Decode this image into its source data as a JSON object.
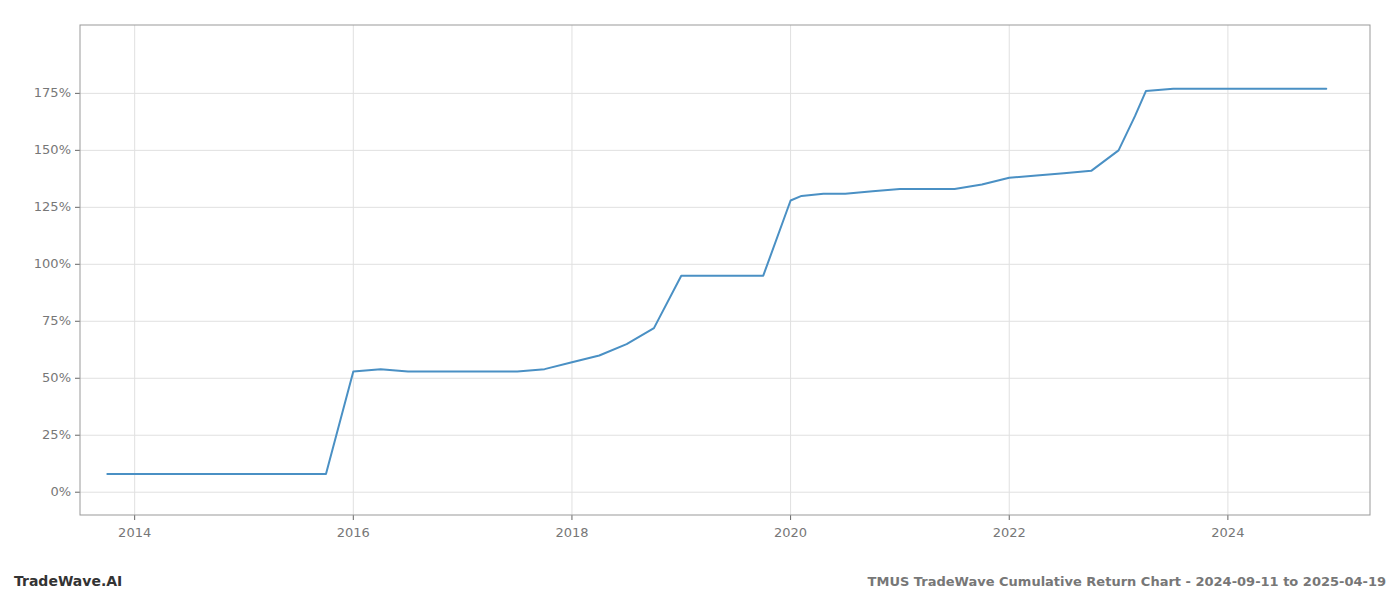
{
  "chart_data": {
    "type": "line",
    "title": "TMUS TradeWave Cumulative Return Chart - 2024-09-11 to 2025-04-19",
    "annotations": [
      "TradeWave.AI"
    ],
    "x": [
      2013.75,
      2014.0,
      2014.5,
      2015.0,
      2015.08,
      2015.75,
      2016.0,
      2016.25,
      2016.5,
      2016.75,
      2017.0,
      2017.25,
      2017.5,
      2017.75,
      2018.0,
      2018.25,
      2018.5,
      2018.75,
      2019.0,
      2019.25,
      2019.5,
      2019.75,
      2020.0,
      2020.1,
      2020.3,
      2020.5,
      2020.75,
      2021.0,
      2021.25,
      2021.5,
      2021.75,
      2022.0,
      2022.25,
      2022.5,
      2022.75,
      2023.0,
      2023.15,
      2023.25,
      2023.5,
      2023.75,
      2024.0,
      2024.25,
      2024.5,
      2024.75,
      2024.9
    ],
    "values": [
      8,
      8,
      8,
      8,
      8,
      8,
      53,
      54,
      53,
      53,
      53,
      53,
      53,
      54,
      57,
      60,
      65,
      72,
      95,
      95,
      95,
      95,
      128,
      130,
      131,
      131,
      132,
      133,
      133,
      133,
      135,
      138,
      139,
      140,
      141,
      150,
      165,
      176,
      177,
      177,
      177,
      177,
      177,
      177,
      177
    ],
    "color": "#4a90c4",
    "xlim": [
      2013.5,
      2025.3
    ],
    "ylim": [
      -10,
      205
    ],
    "xticks": [
      2014,
      2016,
      2018,
      2020,
      2022,
      2024
    ],
    "yticks": [
      {
        "value": 0,
        "label": "0%"
      },
      {
        "value": 25,
        "label": "25%"
      },
      {
        "value": 50,
        "label": "50%"
      },
      {
        "value": 75,
        "label": "75%"
      },
      {
        "value": 100,
        "label": "100%"
      },
      {
        "value": 125,
        "label": "125%"
      },
      {
        "value": 150,
        "label": "150%"
      },
      {
        "value": 175,
        "label": "175%"
      }
    ],
    "grid": true
  }
}
